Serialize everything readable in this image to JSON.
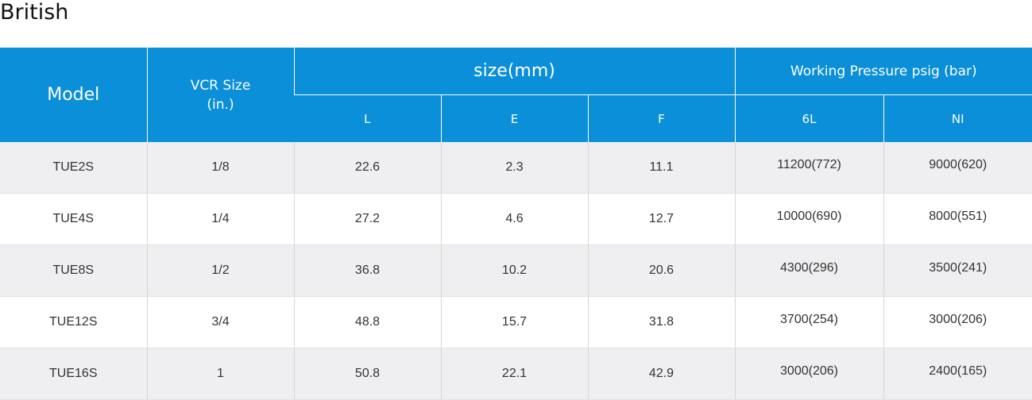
{
  "page": {
    "title": "British"
  },
  "table": {
    "headers": {
      "model": "Model",
      "vcr_size_line1": "VCR Size",
      "vcr_size_line2": "(in.)",
      "size_group": "size(mm)",
      "pressure_group": "Working Pressure psig (bar)",
      "L": "L",
      "E": "E",
      "F": "F",
      "6L": "6L",
      "NI": "NI"
    },
    "rows": [
      {
        "model": "TUE2S",
        "vcr": "1/8",
        "L": "22.6",
        "E": "2.3",
        "F": "11.1",
        "p6l": "11200(772)",
        "pni": "9000(620)"
      },
      {
        "model": "TUE4S",
        "vcr": "1/4",
        "L": "27.2",
        "E": "4.6",
        "F": "12.7",
        "p6l": "10000(690)",
        "pni": "8000(551)"
      },
      {
        "model": "TUE8S",
        "vcr": "1/2",
        "L": "36.8",
        "E": "10.2",
        "F": "20.6",
        "p6l": "4300(296)",
        "pni": "3500(241)"
      },
      {
        "model": "TUE12S",
        "vcr": "3/4",
        "L": "48.8",
        "E": "15.7",
        "F": "31.8",
        "p6l": "3700(254)",
        "pni": "3000(206)"
      },
      {
        "model": "TUE16S",
        "vcr": "1",
        "L": "50.8",
        "E": "22.1",
        "F": "42.9",
        "p6l": "3000(206)",
        "pni": "2400(165)"
      }
    ]
  },
  "colors": {
    "header_bg": "#0a8fd8",
    "stripe_bg": "#efeff1"
  }
}
